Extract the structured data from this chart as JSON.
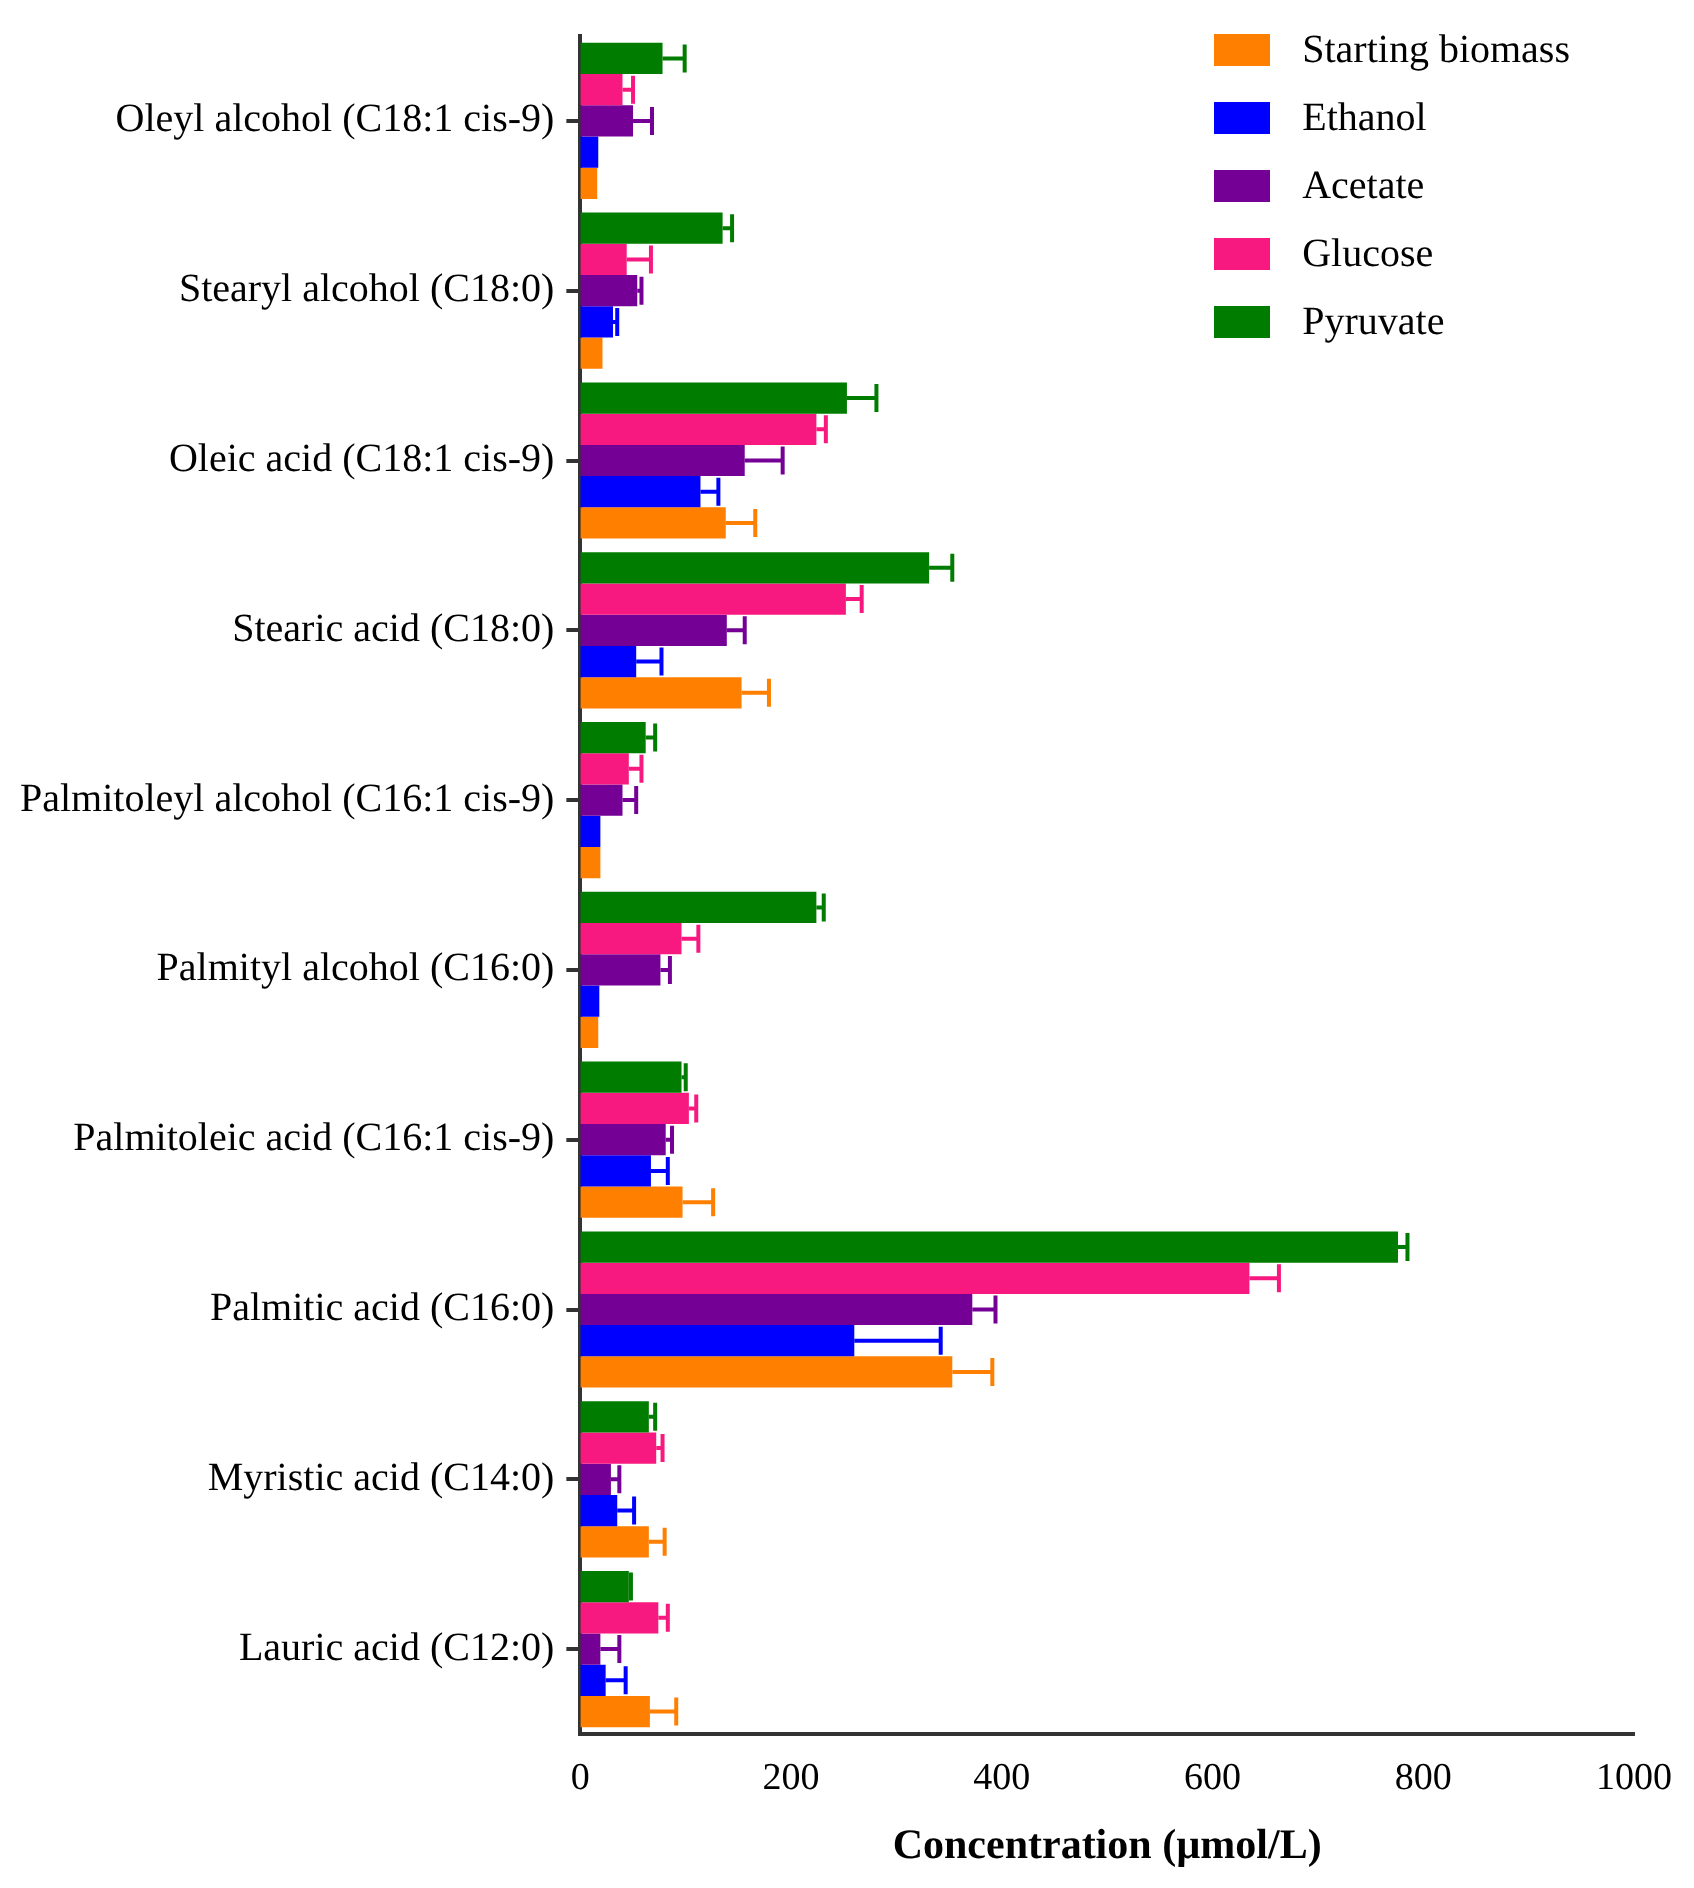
{
  "chart_data": {
    "type": "bar",
    "orientation": "horizontal",
    "xlabel": "Concentration (µmol/L)",
    "categories": [
      "Oleyl alcohol (C18:1 cis-9)",
      "Stearyl alcohol (C18:0)",
      "Oleic acid (C18:1 cis-9)",
      "Stearic acid (C18:0)",
      "Palmitoleyl alcohol (C16:1 cis-9)",
      "Palmityl alcohol (C16:0)",
      "Palmitoleic acid (C16:1 cis-9)",
      "Palmitic acid (C16:0)",
      "Myristic acid (C14:0)",
      "Lauric acid (C12:0)"
    ],
    "series": [
      {
        "name": "Starting biomass",
        "color": "#ff7f00",
        "values": [
          16,
          21,
          138,
          153,
          19,
          17,
          97,
          353,
          65,
          66
        ],
        "errors": [
          null,
          null,
          [
            138,
            166
          ],
          [
            153,
            179
          ],
          null,
          null,
          [
            97,
            126
          ],
          [
            353,
            391
          ],
          [
            65,
            80
          ],
          [
            66,
            91
          ]
        ]
      },
      {
        "name": "Ethanol",
        "color": "#0000ff",
        "values": [
          17,
          31,
          114,
          53,
          19,
          18,
          67,
          260,
          35,
          24
        ],
        "errors": [
          null,
          [
            31,
            35
          ],
          [
            114,
            131
          ],
          [
            53,
            77
          ],
          null,
          null,
          [
            67,
            83
          ],
          [
            260,
            342
          ],
          [
            35,
            51
          ],
          [
            24,
            43
          ]
        ]
      },
      {
        "name": "Acetate",
        "color": "#750096",
        "values": [
          50,
          54,
          156,
          139,
          40,
          76,
          81,
          372,
          29,
          19
        ],
        "errors": [
          [
            50,
            68
          ],
          [
            54,
            58
          ],
          [
            156,
            192
          ],
          [
            139,
            156
          ],
          [
            40,
            53
          ],
          [
            76,
            85
          ],
          [
            81,
            87
          ],
          [
            372,
            394
          ],
          [
            29,
            37
          ],
          [
            19,
            37
          ]
        ]
      },
      {
        "name": "Glucose",
        "color": "#f7197f",
        "values": [
          40,
          44,
          224,
          252,
          46,
          96,
          103,
          635,
          72,
          74
        ],
        "errors": [
          [
            40,
            50
          ],
          [
            44,
            67
          ],
          [
            224,
            233
          ],
          [
            252,
            267
          ],
          [
            46,
            58
          ],
          [
            96,
            112
          ],
          [
            103,
            110
          ],
          [
            635,
            663
          ],
          [
            72,
            78
          ],
          [
            74,
            83
          ]
        ]
      },
      {
        "name": "Pyruvate",
        "color": "#007c00",
        "values": [
          78,
          135,
          253,
          331,
          62,
          224,
          96,
          776,
          65,
          46
        ],
        "errors": [
          [
            78,
            99
          ],
          [
            135,
            144
          ],
          [
            253,
            281
          ],
          [
            331,
            353
          ],
          [
            62,
            71
          ],
          [
            224,
            231
          ],
          [
            96,
            100
          ],
          [
            776,
            785
          ],
          [
            65,
            71
          ],
          [
            46,
            48
          ]
        ]
      }
    ],
    "xlim": [
      0,
      1000
    ],
    "xticks": [
      0,
      200,
      400,
      600,
      800,
      1000
    ],
    "grid": false,
    "legend": "top right"
  }
}
